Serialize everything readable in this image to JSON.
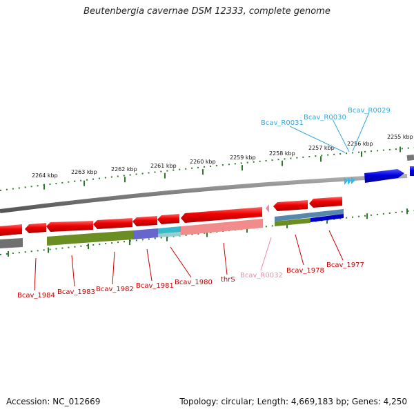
{
  "title": "Beutenbergia cavernae DSM 12333, complete genome",
  "footer": {
    "accession": "Accession: NC_012669",
    "summary": "Topology: circular; Length: 4,669,183 bp; Genes: 4,250"
  },
  "ticks": [
    "2264 kbp",
    "2263 kbp",
    "2262 kbp",
    "2261 kbp",
    "2260 kbp",
    "2259 kbp",
    "2258 kbp",
    "2257 kbp",
    "2256 kbp",
    "2255 kbp"
  ],
  "genes": [
    "Bcav_1984",
    "Bcav_1983",
    "Bcav_1982",
    "Bcav_1981",
    "Bcav_1980",
    "thrS",
    "Bcav_R0032",
    "Bcav_1978",
    "Bcav_1977"
  ],
  "rnas": [
    "Bcav_R0031",
    "Bcav_R0030",
    "Bcav_R0029"
  ],
  "colors": {
    "gene": "#cc0000",
    "trna": "#33bbee",
    "rrna": "#ee88aa",
    "cds_arrow": "#ee0000",
    "feature_green": "#6b8e23",
    "feature_blue": "#0000cc",
    "feature_purple": "#6666cc",
    "backbone": "#808080"
  }
}
